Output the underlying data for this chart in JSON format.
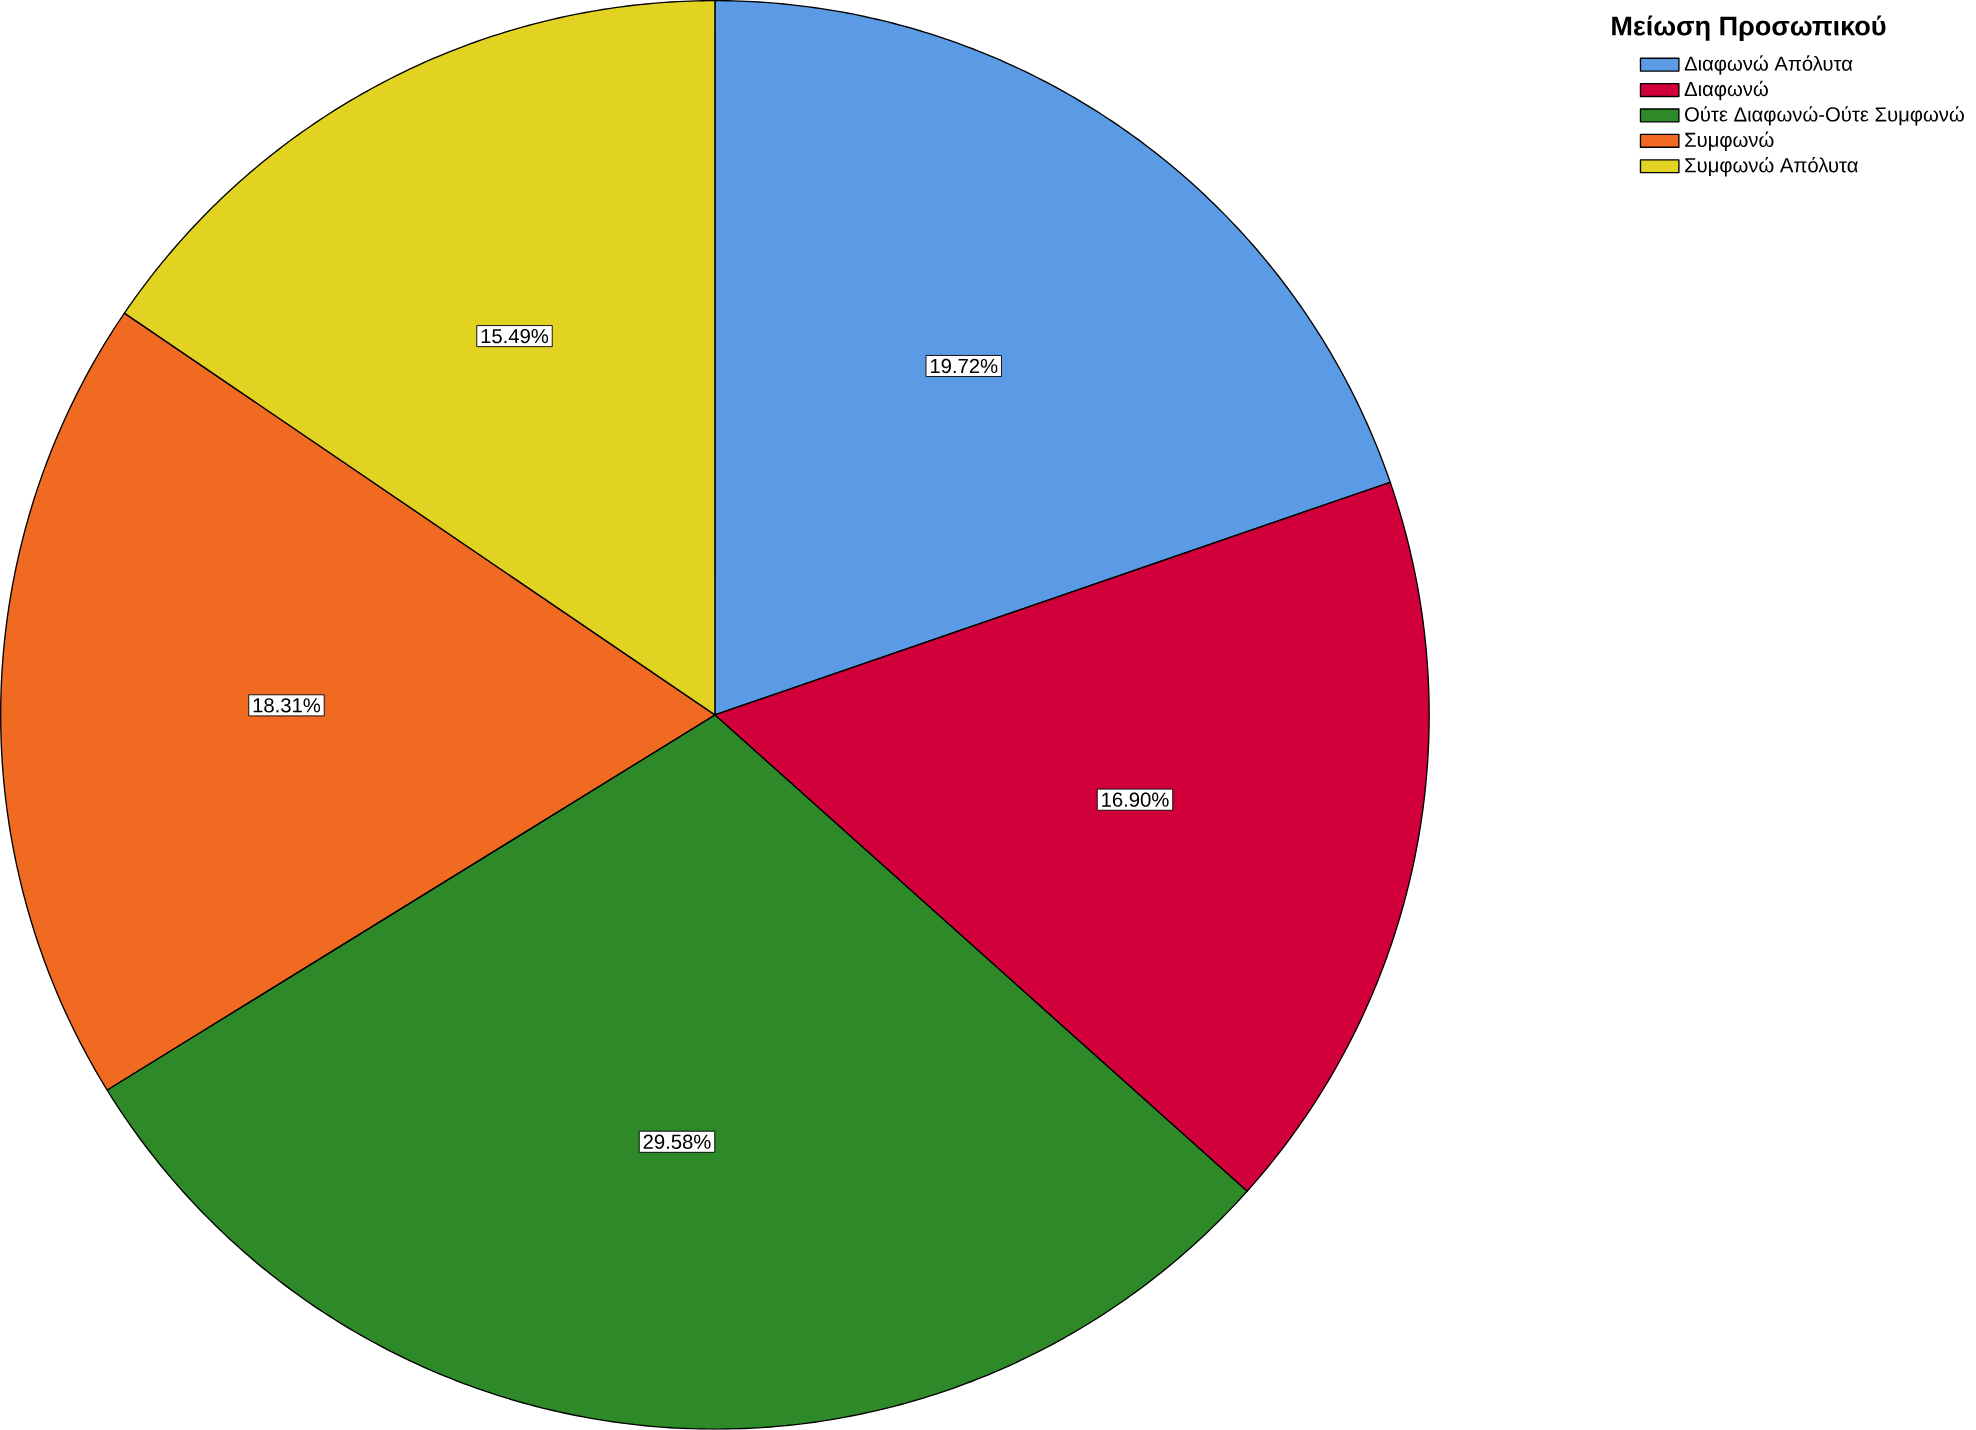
{
  "chart_data": {
    "type": "pie",
    "legend_title": "Μείωση Προσωπικού",
    "categories": [
      "Διαφωνώ Απόλυτα",
      "Διαφωνώ",
      "Ούτε Διαφωνώ-Ούτε Συμφωνώ",
      "Συμφωνώ",
      "Συμφωνώ Απόλυτα"
    ],
    "values": [
      19.72,
      16.9,
      29.58,
      18.31,
      15.49
    ],
    "value_labels": [
      "19.72%",
      "16.90%",
      "29.58%",
      "18.31%",
      "15.49%"
    ],
    "colors": [
      "#5b9ae4",
      "#d2003a",
      "#2e8a28",
      "#f06a22",
      "#e2d322"
    ],
    "legend": "top right"
  }
}
